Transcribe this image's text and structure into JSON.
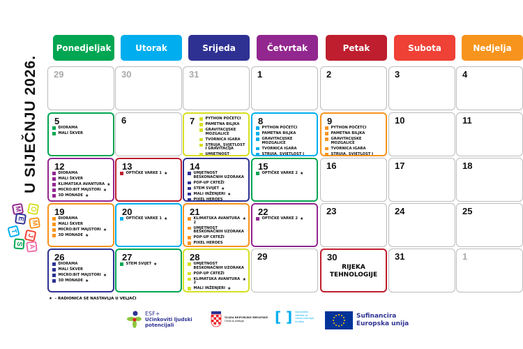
{
  "title": "U SIJEČNJU 2026.",
  "colors": {
    "green": "#00a651",
    "cyan": "#00aeef",
    "navy": "#2e3192",
    "purple": "#92278f",
    "red": "#be1e2d",
    "redorange": "#ef4136",
    "orange": "#f7941d",
    "lime": "#d7df23",
    "gray": "#bbbbbb"
  },
  "weekdays": [
    {
      "label": "Ponedjeljak",
      "color": "#00a651"
    },
    {
      "label": "Utorak",
      "color": "#00aeef"
    },
    {
      "label": "Srijeda",
      "color": "#2e3192"
    },
    {
      "label": "Četvrtak",
      "color": "#92278f"
    },
    {
      "label": "Petak",
      "color": "#be1e2d"
    },
    {
      "label": "Subota",
      "color": "#ef4136"
    },
    {
      "label": "Nedjelja",
      "color": "#f7941d"
    }
  ],
  "weeks": [
    [
      {
        "n": "29",
        "muted": true
      },
      {
        "n": "30",
        "muted": true
      },
      {
        "n": "31",
        "muted": true
      },
      {
        "n": "1"
      },
      {
        "n": "2"
      },
      {
        "n": "3"
      },
      {
        "n": "4"
      }
    ],
    [
      {
        "n": "5",
        "color": "#00a651",
        "events": [
          {
            "t": "DIORAMA"
          },
          {
            "t": "MALI ŠKVER"
          }
        ]
      },
      {
        "n": "6"
      },
      {
        "n": "7",
        "color": "#d7df23",
        "events": [
          {
            "t": "PYTHON POČETCI"
          },
          {
            "t": "PAMETNA BILJKA"
          },
          {
            "t": "GRAVITACIJSKE MOZGALICE"
          },
          {
            "t": "TVORNICA IGARA"
          },
          {
            "t": "STRUJA, SVJETLOST I GRAVITACIJA"
          },
          {
            "t": "UMJETNOST BESKONAČNIH UZORAKA"
          },
          {
            "t": "POP-UP CRTEŽI"
          }
        ]
      },
      {
        "n": "8",
        "color": "#00aeef",
        "events": [
          {
            "t": "PYTHON POČETCI"
          },
          {
            "t": "PAMETNA BILJKA"
          },
          {
            "t": "GRAVITACIJSKE MOZGALICE"
          },
          {
            "t": "TVORNICA IGARA"
          },
          {
            "t": "STRUJA, SVJETLOST I GRAVITACIJA"
          },
          {
            "t": "KLIMATSKA AVANTURA",
            "star": true
          }
        ]
      },
      {
        "n": "9",
        "color": "#f7941d",
        "events": [
          {
            "t": "PYTHON POČETCI"
          },
          {
            "t": "PAMETNA BILJKA"
          },
          {
            "t": "GRAVITACIJSKE MOZGALICE"
          },
          {
            "t": "TVORNICA IGARA"
          },
          {
            "t": "STRUJA, SVJETLOST I GRAVITACIJA"
          }
        ]
      },
      {
        "n": "10"
      },
      {
        "n": "11"
      }
    ],
    [
      {
        "n": "12",
        "color": "#92278f",
        "events": [
          {
            "t": "DIORAMA"
          },
          {
            "t": "MALI ŠKVER"
          },
          {
            "t": "KLIMATSKA AVANTURA",
            "star": true
          },
          {
            "t": "MICRO:BIT MAJSTORI",
            "star": true
          },
          {
            "t": "3D MONADE",
            "star": true
          }
        ]
      },
      {
        "n": "13",
        "color": "#be1e2d",
        "events": [
          {
            "t": "OPTIČKE VARKE 1",
            "star": true
          }
        ]
      },
      {
        "n": "14",
        "color": "#2e3192",
        "events": [
          {
            "t": "UMJETNOST BESKONAČNIH UZORAKA"
          },
          {
            "t": "POP-UP CRTEŽI"
          },
          {
            "t": "STEM SVIJET",
            "star": true
          },
          {
            "t": "MALI INŽENJERI",
            "star": true
          },
          {
            "t": "PIXEL HEROES"
          },
          {
            "t": "SUPERMOĆNI MICRO:BIT"
          }
        ]
      },
      {
        "n": "15",
        "color": "#00a651",
        "events": [
          {
            "t": "OPTIČKE VARKE 2",
            "star": true
          }
        ]
      },
      {
        "n": "16"
      },
      {
        "n": "17"
      },
      {
        "n": "18"
      }
    ],
    [
      {
        "n": "19",
        "color": "#f7941d",
        "events": [
          {
            "t": "DIORAMA"
          },
          {
            "t": "MALI ŠKVER"
          },
          {
            "t": "MICRO:BIT MAJSTORI",
            "star": true
          },
          {
            "t": "3D MONADE",
            "star": true
          }
        ]
      },
      {
        "n": "20",
        "color": "#00aeef",
        "events": [
          {
            "t": "OPTIČKE VARKE 1",
            "star": true
          }
        ]
      },
      {
        "n": "21",
        "color": "#f7941d",
        "events": [
          {
            "t": "KLIMATSKA AVANTURA 2",
            "star": true
          },
          {
            "t": "UMJETNOST BESKONAČNIH UZORAKA"
          },
          {
            "t": "POP-UP CRTEŽI"
          },
          {
            "t": "PIXEL HEROES"
          },
          {
            "t": "SUPERMOĆNI MICRO:BIT"
          }
        ]
      },
      {
        "n": "22",
        "color": "#92278f",
        "events": [
          {
            "t": "OPTIČKE VARKE 2",
            "star": true
          }
        ]
      },
      {
        "n": "23"
      },
      {
        "n": "24"
      },
      {
        "n": "25"
      }
    ],
    [
      {
        "n": "26",
        "color": "#2e3192",
        "events": [
          {
            "t": "DIORAMA"
          },
          {
            "t": "MALI ŠKVER"
          },
          {
            "t": "MICRO:BIT MAJSTORI",
            "star": true
          },
          {
            "t": "3D MONADE",
            "star": true
          }
        ]
      },
      {
        "n": "27",
        "color": "#00a651",
        "events": [
          {
            "t": "STEM SVIJET",
            "star": true
          }
        ]
      },
      {
        "n": "28",
        "color": "#d7df23",
        "events": [
          {
            "t": "UMJETNOST BESKONAČNIH UZORAKA"
          },
          {
            "t": "POP-UP CRTEŽI"
          },
          {
            "t": "KLIMATSKA AVANTURA 2",
            "star": true
          },
          {
            "t": "MALI INŽENJERI",
            "star": true
          },
          {
            "t": "PIXEL HEROES"
          },
          {
            "t": "SUPERMOĆNI MICRO:BIT"
          }
        ]
      },
      {
        "n": "29"
      },
      {
        "n": "30",
        "color": "#be1e2d",
        "center": "RIJEKA TEHNOLOGIJE"
      },
      {
        "n": "31"
      },
      {
        "n": "1",
        "muted": true
      }
    ]
  ],
  "star_glyph": "★",
  "note": "- RADIONICA SE NASTAVLJA U VELJAČI",
  "stem_blocks": [
    {
      "l": "M",
      "c": "#92278f"
    },
    {
      "l": "O",
      "c": "#d7df23"
    },
    {
      "l": "E",
      "c": "#2e3192"
    },
    {
      "l": "M",
      "c": "#f7941d"
    },
    {
      "l": "T",
      "c": "#00aeef"
    },
    {
      "l": "J",
      "c": "#ef4136"
    },
    {
      "l": "S",
      "c": "#00a651"
    },
    {
      "l": "A",
      "c": "#f06eaa"
    }
  ],
  "logos": {
    "esf_title": "ESF+",
    "esf_line1": "Učinkoviti ljudski",
    "esf_line2": "potencijali",
    "gov_line1": "VLADA REPUBLIKE HRVATSKE",
    "gov_line2": "Ured za udruge",
    "nz_text": "Nacionalna zaklada za razvoj civilnoga društva",
    "eu_line1": "Sufinancira",
    "eu_line2": "Europska unija"
  }
}
